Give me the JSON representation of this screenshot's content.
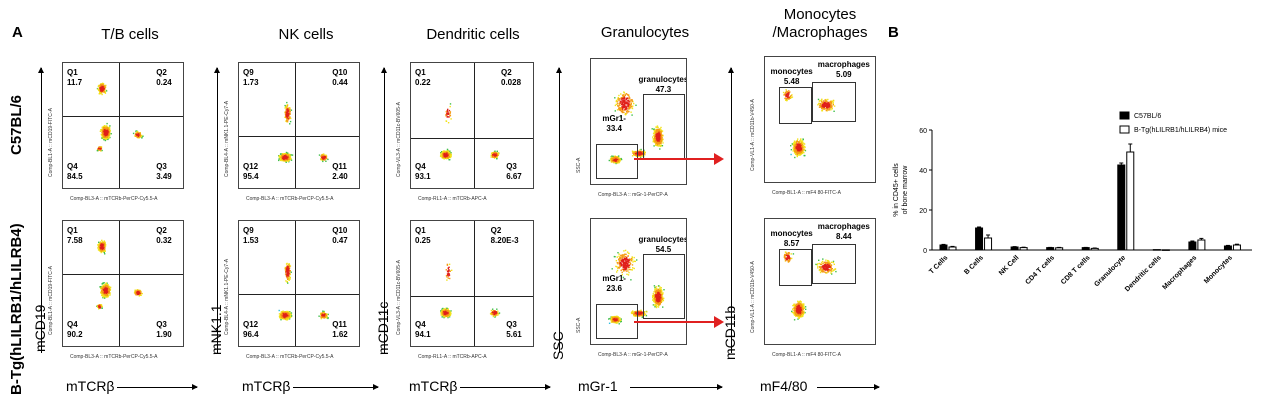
{
  "figure": {
    "panel_a": "A",
    "panel_b": "B",
    "columns": [
      "T/B cells",
      "NK cells",
      "Dendritic cells",
      "Granulocytes",
      "Monocytes\n/Macrophages"
    ],
    "row_labels": [
      "C57BL/6",
      "B-Tg(hLILRB1/hLILRB4)"
    ],
    "bottom_labels": [
      "mTCRβ",
      "mTCRβ",
      "mTCRβ",
      "mGr-1",
      "mF4/80"
    ],
    "side_labels": [
      "mCD19",
      "mNK1.1",
      "mCD11c",
      "SSC",
      "mCD11b"
    ]
  },
  "plots": [
    {
      "xlabel": "Comp-BL3-A :: mTCRb-PerCP-Cy5.5-A",
      "ylabel": "Comp-BL1-A :: mCD19-FITC-A",
      "gates": [
        {
          "name": "Q1",
          "value": "11.7"
        },
        {
          "name": "Q2",
          "value": "0.24"
        },
        {
          "name": "Q4",
          "value": "84.5"
        },
        {
          "name": "Q3",
          "value": "3.49"
        }
      ]
    },
    {
      "xlabel": "Comp-BL3-A :: mTCRb-PerCP-Cy5.5-A",
      "ylabel": "Comp-BL4-A :: mNK1.1-PE-Cy7-A",
      "gates": [
        {
          "name": "Q9",
          "value": "1.73"
        },
        {
          "name": "Q10",
          "value": "0.44"
        },
        {
          "name": "Q12",
          "value": "95.4"
        },
        {
          "name": "Q11",
          "value": "2.40"
        }
      ]
    },
    {
      "xlabel": "Comp-RL1-A :: mTCRb-APC-A",
      "ylabel": "Comp-VL3-A :: mCD11c-BV605-A",
      "gates": [
        {
          "name": "Q1",
          "value": "0.22"
        },
        {
          "name": "Q2",
          "value": "0.028"
        },
        {
          "name": "Q4",
          "value": "93.1"
        },
        {
          "name": "Q3",
          "value": "6.67"
        }
      ]
    },
    {
      "xlabel": "Comp-BL3-A :: mGr-1-PerCP-A",
      "ylabel": "SSC-A",
      "gates": [
        {
          "name": "granulocytes",
          "value": "47.3"
        },
        {
          "name": "mGr1-",
          "value": "33.4"
        }
      ]
    },
    {
      "xlabel": "Comp-BL1-A :: mF4 80-FITC-A",
      "ylabel": "Comp-VL1-A :: mCD11b-V450-A",
      "gates": [
        {
          "name": "monocytes",
          "value": "5.48"
        },
        {
          "name": "macrophages",
          "value": "5.09"
        }
      ]
    },
    {
      "xlabel": "Comp-BL3-A :: mTCRb-PerCP-Cy5.5-A",
      "ylabel": "Comp-BL1-A :: mCD19-FITC-A",
      "gates": [
        {
          "name": "Q1",
          "value": "7.58"
        },
        {
          "name": "Q2",
          "value": "0.32"
        },
        {
          "name": "Q4",
          "value": "90.2"
        },
        {
          "name": "Q3",
          "value": "1.90"
        }
      ]
    },
    {
      "xlabel": "Comp-BL3-A :: mTCRb-PerCP-Cy5.5-A",
      "ylabel": "Comp-BL4-A :: mNK1.1-PE-Cy7-A",
      "gates": [
        {
          "name": "Q9",
          "value": "1.53"
        },
        {
          "name": "Q10",
          "value": "0.47"
        },
        {
          "name": "Q12",
          "value": "96.4"
        },
        {
          "name": "Q11",
          "value": "1.62"
        }
      ]
    },
    {
      "xlabel": "Comp-RL1-A :: mTCRb-APC-A",
      "ylabel": "Comp-VL3-A :: mCD11c-BV605-A",
      "gates": [
        {
          "name": "Q1",
          "value": "0.25"
        },
        {
          "name": "Q2",
          "value": "8.20E-3"
        },
        {
          "name": "Q4",
          "value": "94.1"
        },
        {
          "name": "Q3",
          "value": "5.61"
        }
      ]
    },
    {
      "xlabel": "Comp-BL3-A :: mGr-1-PerCP-A",
      "ylabel": "SSC-A",
      "gates": [
        {
          "name": "granulocytes",
          "value": "54.5"
        },
        {
          "name": "mGr1-",
          "value": "23.6"
        }
      ]
    },
    {
      "xlabel": "Comp-BL1-A :: mF4 80-FITC-A",
      "ylabel": "Comp-VL1-A :: mCD11b-V450-A",
      "gates": [
        {
          "name": "monocytes",
          "value": "8.57"
        },
        {
          "name": "macrophages",
          "value": "8.44"
        }
      ]
    }
  ],
  "chart_data": {
    "type": "bar",
    "categories": [
      "T Cells",
      "B Cells",
      "NK Cell",
      "CD4 T cells",
      "CD8 T cells",
      "Granulocyte",
      "Dendritic cells",
      "Macrophages",
      "Monocytes"
    ],
    "series": [
      {
        "name": "C57BL/6",
        "values": [
          2.5,
          11,
          1.5,
          1.2,
          1.2,
          42.5,
          0.2,
          4,
          2
        ],
        "color": "#000000"
      },
      {
        "name": "B-Tg(hLILRB1/hLILRB4) mice",
        "values": [
          1.5,
          6,
          1.2,
          1.1,
          0.8,
          49,
          0.1,
          5,
          2.5
        ],
        "color": "#ffffff"
      }
    ],
    "errors": [
      [
        0.3,
        0.5,
        0.2,
        0.1,
        0.1,
        1,
        0,
        0.5,
        0.3
      ],
      [
        0.3,
        1.5,
        0.2,
        0.2,
        0.2,
        4,
        0,
        0.8,
        0.4
      ]
    ],
    "ylabel": "% in CD45+ cells\nof bone marrow",
    "yticks": [
      "0",
      "20",
      "40",
      "60"
    ],
    "ylim": [
      0,
      60
    ],
    "legend": "top-right"
  }
}
